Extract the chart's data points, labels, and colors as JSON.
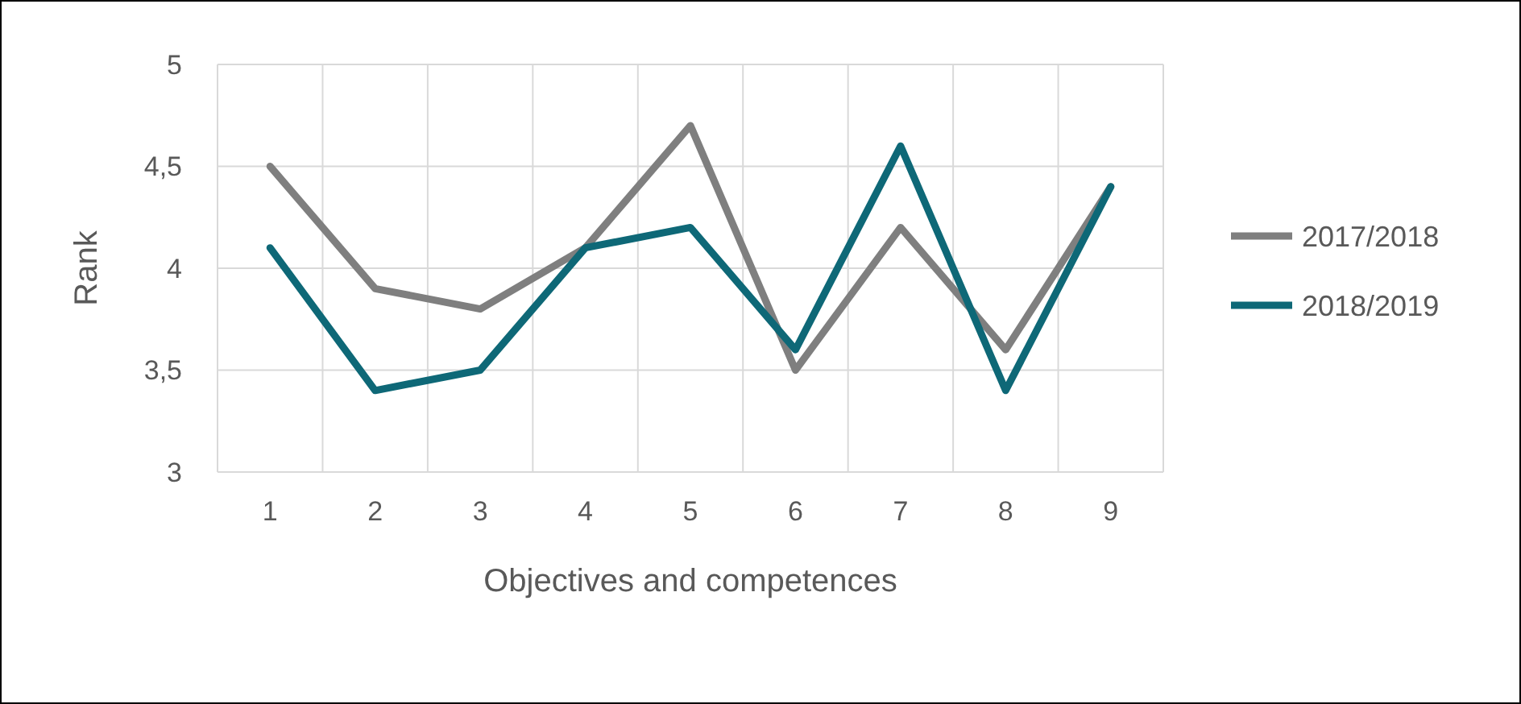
{
  "chart_data": {
    "type": "line",
    "xlabel": "Objectives and competences",
    "ylabel": "Rank",
    "categories": [
      "1",
      "2",
      "3",
      "4",
      "5",
      "6",
      "7",
      "8",
      "9"
    ],
    "series": [
      {
        "name": "2017/2018",
        "color": "#7f7f7f",
        "values": [
          4.5,
          3.9,
          3.8,
          4.1,
          4.7,
          3.5,
          4.2,
          3.6,
          4.4
        ]
      },
      {
        "name": "2018/2019",
        "color": "#0e6877",
        "values": [
          4.1,
          3.4,
          3.5,
          4.1,
          4.2,
          3.6,
          4.6,
          3.4,
          4.4
        ]
      }
    ],
    "ylim": [
      3,
      5
    ],
    "yticks": [
      3,
      {
        "value": 3.5,
        "label": "3,5"
      },
      4,
      {
        "value": 4.5,
        "label": "4,5"
      },
      5
    ],
    "grid": true,
    "legend": "right",
    "marker": "none",
    "line_style": "solid"
  }
}
